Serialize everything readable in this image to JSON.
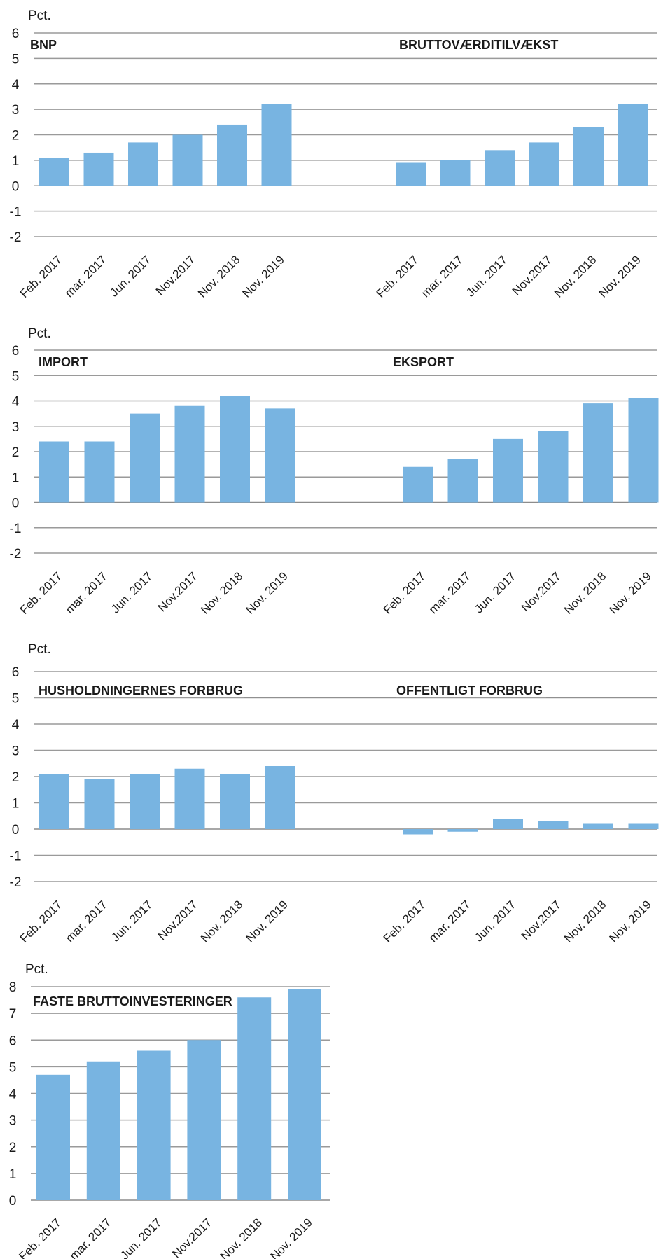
{
  "colors": {
    "bar": "#78b4e1",
    "grid": "#9a9a9a",
    "text": "#1a1a1a"
  },
  "chart_data": [
    {
      "type": "bar",
      "title": "BNP",
      "ylabel": "Pct.",
      "ylim": [
        -2,
        6
      ],
      "yticks": [
        "6",
        "5",
        "4",
        "3",
        "2",
        "1",
        "0",
        "-1",
        "-2"
      ],
      "categories": [
        "Feb. 2017",
        "mar. 2017",
        "Jun. 2017",
        "Nov.2017",
        "Nov. 2018",
        "Nov. 2019"
      ],
      "values": [
        1.1,
        1.3,
        1.7,
        2.0,
        2.4,
        3.2
      ]
    },
    {
      "type": "bar",
      "title": "BRUTTOVÆRDITILVÆKST",
      "ylim": [
        -2,
        6
      ],
      "categories": [
        "Feb. 2017",
        "mar. 2017",
        "Jun. 2017",
        "Nov.2017",
        "Nov. 2018",
        "Nov. 2019"
      ],
      "values": [
        0.9,
        1.0,
        1.4,
        1.7,
        2.3,
        3.2
      ]
    },
    {
      "type": "bar",
      "title": "IMPORT",
      "ylabel": "Pct.",
      "ylim": [
        -2,
        6
      ],
      "yticks": [
        "6",
        "5",
        "4",
        "3",
        "2",
        "1",
        "0",
        "-1",
        "-2"
      ],
      "categories": [
        "Feb. 2017",
        "mar. 2017",
        "Jun. 2017",
        "Nov.2017",
        "Nov. 2018",
        "Nov. 2019"
      ],
      "values": [
        2.4,
        2.4,
        3.5,
        3.8,
        4.2,
        3.7
      ]
    },
    {
      "type": "bar",
      "title": "EKSPORT",
      "ylim": [
        -2,
        6
      ],
      "categories": [
        "Feb. 2017",
        "mar. 2017",
        "Jun. 2017",
        "Nov.2017",
        "Nov. 2018",
        "Nov. 2019"
      ],
      "values": [
        1.4,
        1.7,
        2.5,
        2.8,
        3.9,
        4.1
      ]
    },
    {
      "type": "bar",
      "title": "HUSHOLDNINGERNES FORBRUG",
      "ylabel": "Pct.",
      "ylim": [
        -2,
        6
      ],
      "yticks": [
        "6",
        "5",
        "4",
        "3",
        "2",
        "1",
        "0",
        "-1",
        "-2"
      ],
      "categories": [
        "Feb. 2017",
        "mar. 2017",
        "Jun. 2017",
        "Nov.2017",
        "Nov. 2018",
        "Nov. 2019"
      ],
      "values": [
        2.1,
        1.9,
        2.1,
        2.3,
        2.1,
        2.4
      ]
    },
    {
      "type": "bar",
      "title": "OFFENTLIGT FORBRUG",
      "ylim": [
        -2,
        6
      ],
      "categories": [
        "Feb. 2017",
        "mar. 2017",
        "Jun. 2017",
        "Nov.2017",
        "Nov. 2018",
        "Nov. 2019"
      ],
      "values": [
        -0.2,
        -0.1,
        0.4,
        0.3,
        0.2,
        0.2
      ]
    },
    {
      "type": "bar",
      "title": "FASTE BRUTTOINVESTERINGER",
      "ylabel": "Pct.",
      "ylim": [
        0,
        8
      ],
      "yticks": [
        "8",
        "7",
        "6",
        "5",
        "4",
        "3",
        "2",
        "1",
        "0"
      ],
      "categories": [
        "Feb. 2017",
        "mar. 2017",
        "Jun. 2017",
        "Nov.2017",
        "Nov. 2018",
        "Nov. 2019"
      ],
      "values": [
        4.7,
        5.2,
        5.6,
        6.0,
        7.6,
        7.9
      ]
    }
  ]
}
